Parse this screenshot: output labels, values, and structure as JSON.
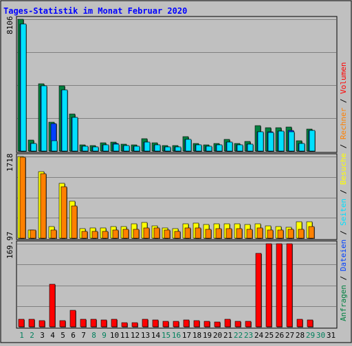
{
  "title": "Tages-Statistik im Monat Februar 2020",
  "colors": {
    "background": "#c0c0c0",
    "title": "#0000ff",
    "hits": "#008040",
    "files": "#0040ff",
    "pages": "#00e0ff",
    "visits": "#ffff00",
    "sites": "#ff8000",
    "kbytes": "#ff0000",
    "weekend_label": "#00805c",
    "weekday_label": "#000000",
    "gridline": "#808080"
  },
  "legend": {
    "right_upper": [
      {
        "text": "Anfragen",
        "color": "#008040"
      },
      {
        "text": "/",
        "color": "#000000"
      },
      {
        "text": "Dateien",
        "color": "#0040ff"
      },
      {
        "text": "/",
        "color": "#000000"
      },
      {
        "text": "Seiten",
        "color": "#00e0ff"
      },
      {
        "text": "/",
        "color": "#000000"
      },
      {
        "text": "Besuche",
        "color": "#ffff00"
      },
      {
        "text": "/",
        "color": "#000000"
      },
      {
        "text": "Rechner",
        "color": "#ff8000"
      },
      {
        "text": "/",
        "color": "#000000"
      },
      {
        "text": "Volumen",
        "color": "#ff0000"
      }
    ]
  },
  "chart_data": {
    "type": "bar",
    "title": "Tages-Statistik im Monat Februar 2020",
    "categories": [
      "1",
      "2",
      "3",
      "4",
      "5",
      "6",
      "7",
      "8",
      "9",
      "10",
      "11",
      "12",
      "13",
      "14",
      "15",
      "16",
      "17",
      "18",
      "19",
      "20",
      "21",
      "22",
      "23",
      "24",
      "25",
      "26",
      "27",
      "28",
      "29",
      "30",
      "31"
    ],
    "weekend_days": [
      1,
      2,
      8,
      9,
      15,
      16,
      22,
      23,
      29,
      30
    ],
    "panels": [
      {
        "name": "requests",
        "ymax_label": "8106",
        "ymax": 8106,
        "series": [
          {
            "name": "Anfragen",
            "values": [
              8106,
              660,
              4130,
              1790,
              3990,
              2280,
              400,
              340,
              500,
              560,
              430,
              400,
              740,
              490,
              330,
              350,
              870,
              450,
              380,
              460,
              700,
              480,
              570,
              1560,
              1450,
              1440,
              1460,
              650,
              1340,
              0,
              0
            ]
          },
          {
            "name": "Dateien",
            "values": [
              7800,
              480,
              4000,
              1670,
              3740,
              2060,
              300,
              250,
              390,
              450,
              330,
              300,
              560,
              380,
              240,
              260,
              720,
              360,
              290,
              370,
              550,
              380,
              420,
              1200,
              1170,
              1220,
              1280,
              460,
              1260,
              0,
              0
            ]
          },
          {
            "name": "Seiten",
            "values": [
              7800,
              470,
              4020,
              650,
              3740,
              2060,
              300,
              250,
              390,
              440,
              330,
              300,
              560,
              370,
              240,
              260,
              720,
              360,
              280,
              360,
              550,
              380,
              420,
              1200,
              1160,
              1220,
              1190,
              450,
              1260,
              0,
              0
            ]
          }
        ]
      },
      {
        "name": "visits",
        "ymax_label": "1718",
        "ymax": 1718,
        "series": [
          {
            "name": "Besuche",
            "values": [
              1718,
              180,
              1400,
              240,
              1160,
              780,
              200,
              210,
              220,
              250,
              250,
              300,
              330,
              260,
              220,
              200,
              310,
              320,
              290,
              310,
              300,
              310,
              290,
              300,
              260,
              250,
              230,
              340,
              340,
              0,
              0
            ]
          },
          {
            "name": "Rechner",
            "values": [
              1700,
              170,
              1350,
              180,
              1080,
              680,
              140,
              140,
              150,
              170,
              190,
              190,
              220,
              210,
              170,
              150,
              210,
              210,
              190,
              200,
              200,
              200,
              190,
              210,
              180,
              180,
              190,
              190,
              250,
              0,
              0
            ]
          }
        ]
      },
      {
        "name": "kbytes",
        "ymax_label": "169.97",
        "ymax": 169.97,
        "series": [
          {
            "name": "Volumen",
            "values": [
              16,
              16,
              13,
              87,
              12,
              34,
              15,
              15,
              14,
              15,
              9,
              9,
              16,
              14,
              11,
              11,
              14,
              12,
              11,
              10,
              15,
              11,
              11,
              150,
              169.97,
              169.97,
              169.97,
              15,
              14,
              0,
              0
            ]
          }
        ]
      }
    ]
  }
}
